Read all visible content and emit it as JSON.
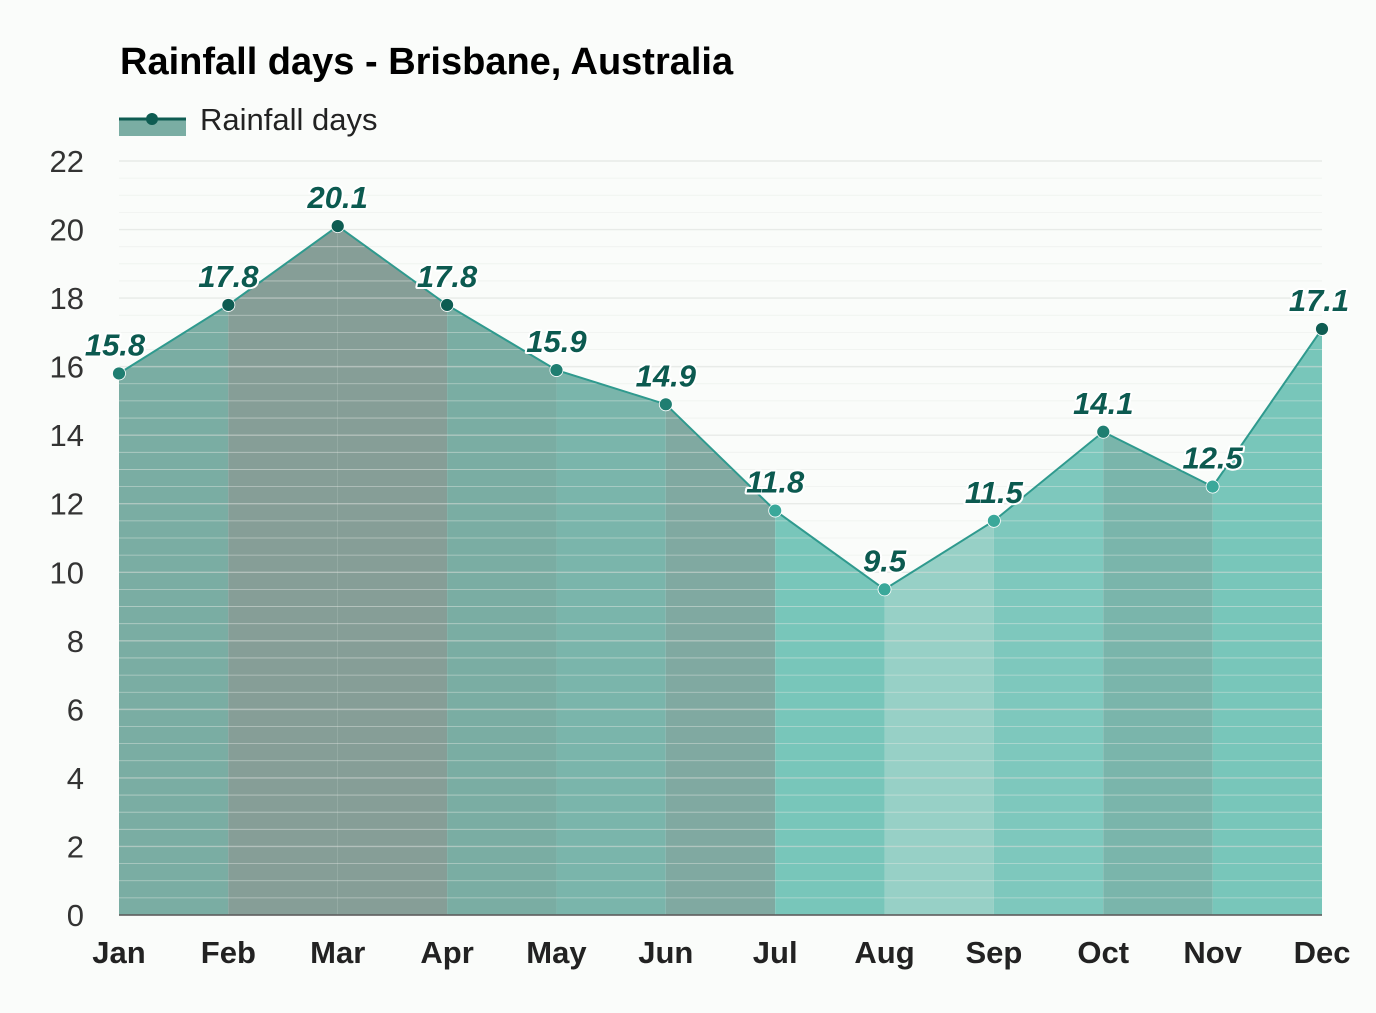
{
  "chart_data": {
    "type": "area",
    "title": "Rainfall days - Brisbane, Australia",
    "legend": {
      "label": "Rainfall days",
      "position": "top-left"
    },
    "categories": [
      "Jan",
      "Feb",
      "Mar",
      "Apr",
      "May",
      "Jun",
      "Jul",
      "Aug",
      "Sep",
      "Oct",
      "Nov",
      "Dec"
    ],
    "series": [
      {
        "name": "Rainfall days",
        "values": [
          15.8,
          17.8,
          20.1,
          17.8,
          15.9,
          14.9,
          11.8,
          9.5,
          11.5,
          14.1,
          12.5,
          17.1
        ],
        "value_labels": [
          "15.8",
          "17.8",
          "20.1",
          "17.8",
          "15.9",
          "14.9",
          "11.8",
          "9.5",
          "11.5",
          "14.1",
          "12.5",
          "17.1"
        ]
      }
    ],
    "ylim": [
      0,
      22
    ],
    "yticks": [
      "0",
      "2",
      "4",
      "6",
      "8",
      "10",
      "12",
      "14",
      "16",
      "18",
      "20",
      "22"
    ],
    "grid": true,
    "colors": {
      "line": "#2f9a8e",
      "marker_dark": "#0e5c52",
      "marker_light": "#3aa89a",
      "band_colors": [
        "#7aada3",
        "#869e97",
        "#869e97",
        "#7aada3",
        "#7ab5ab",
        "#80a9a1",
        "#78c6ba",
        "#97d0c6",
        "#7ec8bd",
        "#7ab5ab",
        "#78c6ba",
        "#79aca4"
      ]
    }
  }
}
